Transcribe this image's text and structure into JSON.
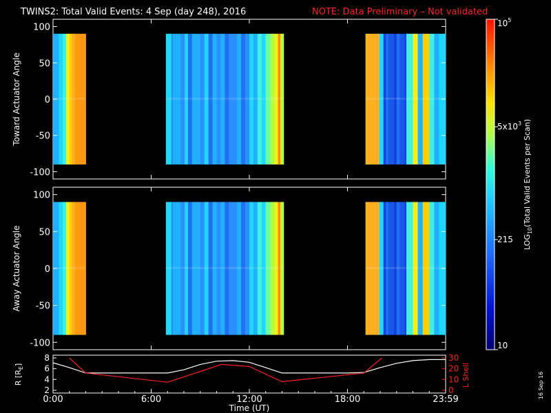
{
  "header": {
    "title": "TWINS2: Total Valid Events:  4 Sep (day 248), 2016",
    "note": "NOTE: Data Preliminary – Not validated",
    "title_color": "#ffffff",
    "note_color": "#ff2020"
  },
  "footer": {
    "date_stamp": "16 Sep 16"
  },
  "chart_data": [
    {
      "type": "heatmap",
      "panel": "toward",
      "ylabel": "Toward Actuator Angle",
      "ylim": [
        -110,
        110
      ],
      "yticks": [
        "100",
        "50",
        "0",
        "-50",
        "-100"
      ],
      "ytick_values": [
        100,
        50,
        0,
        -50,
        -100
      ],
      "xlim_hours": [
        0,
        24
      ],
      "data_y_range": [
        -90,
        90
      ],
      "segments": [
        {
          "start_hour": 0.0,
          "end_hour": 2.0
        },
        {
          "start_hour": 6.9,
          "end_hour": 14.1
        },
        {
          "start_hour": 19.1,
          "end_hour": 24.0
        }
      ]
    },
    {
      "type": "heatmap",
      "panel": "away",
      "ylabel": "Away Actuator Angle",
      "ylim": [
        -110,
        110
      ],
      "yticks": [
        "100",
        "50",
        "0",
        "-50",
        "-100"
      ],
      "ytick_values": [
        100,
        50,
        0,
        -50,
        -100
      ],
      "xlim_hours": [
        0,
        24
      ],
      "data_y_range": [
        -90,
        90
      ],
      "segments": [
        {
          "start_hour": 0.0,
          "end_hour": 2.0
        },
        {
          "start_hour": 6.9,
          "end_hour": 14.1
        },
        {
          "start_hour": 19.1,
          "end_hour": 24.0
        }
      ]
    },
    {
      "type": "line",
      "panel": "ephemeris",
      "xlabel": "Time (UT)",
      "xticks": [
        "0:00",
        "6:00",
        "12:00",
        "18:00",
        "23:59"
      ],
      "xtick_hours": [
        0,
        6,
        12,
        18,
        24
      ],
      "left_axis": {
        "label": "R [R",
        "label_sub": "E",
        "label_end": "]",
        "ylim": [
          2,
          8
        ],
        "yticks": [
          "8",
          "6",
          "4",
          "2"
        ],
        "ytick_values": [
          8,
          6,
          4,
          2
        ],
        "color": "#ffffff"
      },
      "right_axis": {
        "label": "L Shell",
        "ylim": [
          0,
          30
        ],
        "yticks": [
          "30",
          "20",
          "10",
          "0"
        ],
        "ytick_values": [
          30,
          20,
          10,
          0
        ],
        "color": "#ff2020"
      },
      "series": [
        {
          "axis": "left",
          "color": "#ffffff",
          "x": [
            0,
            1,
            2,
            3,
            4,
            5,
            6,
            7,
            8,
            9,
            10,
            11,
            12,
            13,
            14,
            15,
            16,
            17,
            18,
            19,
            20,
            21,
            22,
            23,
            24
          ],
          "values": [
            7.1,
            6.2,
            5.2,
            5.2,
            5.2,
            5.2,
            5.2,
            5.2,
            5.8,
            6.8,
            7.4,
            7.5,
            7.2,
            6.2,
            5.2,
            5.2,
            5.2,
            5.2,
            5.2,
            5.3,
            6.2,
            7.0,
            7.5,
            7.7,
            7.7
          ]
        },
        {
          "axis": "right",
          "color": "#ff2020",
          "x": [
            1.0,
            2,
            7,
            10.3,
            12,
            14,
            19,
            20.1
          ],
          "values": [
            30,
            16,
            7.5,
            24,
            22,
            8,
            16,
            30
          ]
        }
      ]
    }
  ],
  "colorbar": {
    "label_prefix": "LOG",
    "label_sub": "10",
    "label_rest": "(Total Valid Events per Scan)",
    "ticks": [
      {
        "text": "10",
        "sup": "5",
        "value": 100000
      },
      {
        "text": "5x10",
        "sup": "3",
        "value": 5000
      },
      {
        "text": "215",
        "sup": "",
        "value": 215
      },
      {
        "text": "10",
        "sup": "",
        "value": 10
      }
    ],
    "range": [
      10,
      100000
    ],
    "scale": "log"
  }
}
